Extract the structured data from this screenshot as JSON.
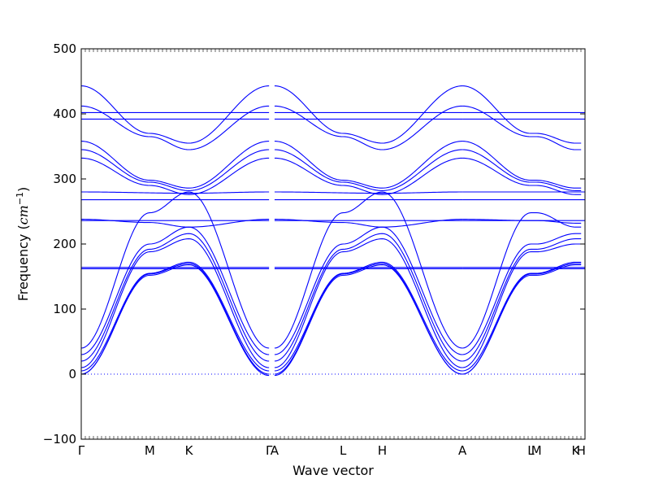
{
  "chart_data": {
    "type": "line",
    "xlabel": "Wave vector",
    "ylabel_prefix": "Frequency (",
    "ylabel_unit": "cm",
    "ylabel_exp": "−1",
    "ylabel_suffix": ")",
    "ylim": [
      -100,
      500
    ],
    "yticks": [
      -100,
      0,
      100,
      200,
      300,
      400,
      500
    ],
    "ytick_labels": [
      "−100",
      "0",
      "100",
      "200",
      "300",
      "400",
      "500"
    ],
    "xlim": [
      0,
      9.12
    ],
    "xticks": [
      {
        "label": "Γ",
        "x": 0
      },
      {
        "label": "M",
        "x": 1.24
      },
      {
        "label": "K",
        "x": 1.95
      },
      {
        "label": "Γ",
        "x": 3.4
      },
      {
        "label": "A",
        "x": 3.5
      },
      {
        "label": "L",
        "x": 4.74
      },
      {
        "label": "H",
        "x": 5.45
      },
      {
        "label": "A",
        "x": 6.9
      },
      {
        "label": "L",
        "x": 8.14
      },
      {
        "label": "M",
        "x": 8.24
      },
      {
        "label": "K",
        "x": 8.95
      },
      {
        "label": "H",
        "x": 9.05
      }
    ],
    "zero_line": 0,
    "line_color": "#0000ff",
    "zero_line_color": "#0000ff",
    "series": [
      {
        "x": [
          0,
          1.24,
          1.95,
          3.4
        ],
        "values": [
          443,
          370,
          355,
          443
        ]
      },
      {
        "x": [
          0,
          1.24,
          1.95,
          3.4
        ],
        "values": [
          412,
          365,
          345,
          412
        ]
      },
      {
        "x": [
          0,
          3.4
        ],
        "values": [
          402,
          402
        ]
      },
      {
        "x": [
          0,
          3.4
        ],
        "values": [
          392,
          392
        ]
      },
      {
        "x": [
          0,
          1.24,
          1.95,
          3.4
        ],
        "values": [
          358,
          298,
          286,
          358
        ]
      },
      {
        "x": [
          0,
          1.24,
          1.95,
          3.4
        ],
        "values": [
          345,
          295,
          282,
          345
        ]
      },
      {
        "x": [
          0,
          1.24,
          1.95,
          3.4
        ],
        "values": [
          332,
          290,
          276,
          332
        ]
      },
      {
        "x": [
          0,
          1.95,
          3.4
        ],
        "values": [
          280,
          278,
          280
        ]
      },
      {
        "x": [
          0,
          3.4
        ],
        "values": [
          268,
          268
        ]
      },
      {
        "x": [
          0,
          1.24,
          1.95,
          3.4
        ],
        "values": [
          238,
          233,
          226,
          238
        ]
      },
      {
        "x": [
          0,
          3.4
        ],
        "values": [
          236,
          236
        ]
      },
      {
        "x": [
          0,
          3.4
        ],
        "values": [
          164,
          164
        ]
      },
      {
        "x": [
          0,
          3.4
        ],
        "values": [
          162,
          162
        ]
      },
      {
        "x": [
          0,
          1.24,
          1.95,
          3.4
        ],
        "values": [
          40,
          248,
          280,
          40
        ]
      },
      {
        "x": [
          0,
          1.24,
          1.95,
          3.4
        ],
        "values": [
          30,
          200,
          226,
          30
        ]
      },
      {
        "x": [
          0,
          1.24,
          1.95,
          3.4
        ],
        "values": [
          20,
          192,
          216,
          20
        ]
      },
      {
        "x": [
          0,
          1.24,
          1.95,
          3.4
        ],
        "values": [
          10,
          188,
          208,
          10
        ]
      },
      {
        "x": [
          0,
          1.24,
          1.95,
          3.4
        ],
        "values": [
          5,
          155,
          172,
          5
        ]
      },
      {
        "x": [
          0,
          1.24,
          1.95,
          3.4
        ],
        "values": [
          0,
          154,
          170,
          0
        ]
      },
      {
        "x": [
          0,
          1.24,
          1.95,
          3.4
        ],
        "values": [
          0,
          152,
          168,
          -2
        ]
      },
      {
        "x": [
          3.5,
          4.74,
          5.45,
          6.9
        ],
        "values": [
          443,
          370,
          355,
          443
        ]
      },
      {
        "x": [
          3.5,
          4.74,
          5.45,
          6.9
        ],
        "values": [
          412,
          365,
          345,
          412
        ]
      },
      {
        "x": [
          3.5,
          6.9
        ],
        "values": [
          402,
          402
        ]
      },
      {
        "x": [
          3.5,
          6.9
        ],
        "values": [
          392,
          392
        ]
      },
      {
        "x": [
          3.5,
          4.74,
          5.45,
          6.9
        ],
        "values": [
          358,
          298,
          286,
          358
        ]
      },
      {
        "x": [
          3.5,
          4.74,
          5.45,
          6.9
        ],
        "values": [
          345,
          295,
          282,
          345
        ]
      },
      {
        "x": [
          3.5,
          4.74,
          5.45,
          6.9
        ],
        "values": [
          332,
          290,
          276,
          332
        ]
      },
      {
        "x": [
          3.5,
          5.45,
          6.9
        ],
        "values": [
          280,
          278,
          280
        ]
      },
      {
        "x": [
          3.5,
          6.9
        ],
        "values": [
          268,
          268
        ]
      },
      {
        "x": [
          3.5,
          4.74,
          5.45,
          6.9
        ],
        "values": [
          238,
          233,
          226,
          238
        ]
      },
      {
        "x": [
          3.5,
          6.9
        ],
        "values": [
          236,
          236
        ]
      },
      {
        "x": [
          3.5,
          6.9
        ],
        "values": [
          164,
          164
        ]
      },
      {
        "x": [
          3.5,
          6.9
        ],
        "values": [
          162,
          162
        ]
      },
      {
        "x": [
          3.5,
          4.74,
          5.45,
          6.9
        ],
        "values": [
          40,
          248,
          280,
          40
        ]
      },
      {
        "x": [
          3.5,
          4.74,
          5.45,
          6.9
        ],
        "values": [
          30,
          200,
          226,
          30
        ]
      },
      {
        "x": [
          3.5,
          4.74,
          5.45,
          6.9
        ],
        "values": [
          20,
          192,
          216,
          20
        ]
      },
      {
        "x": [
          3.5,
          4.74,
          5.45,
          6.9
        ],
        "values": [
          10,
          188,
          208,
          10
        ]
      },
      {
        "x": [
          3.5,
          4.74,
          5.45,
          6.9
        ],
        "values": [
          5,
          155,
          172,
          5
        ]
      },
      {
        "x": [
          3.5,
          4.74,
          5.45,
          6.9
        ],
        "values": [
          0,
          154,
          170,
          0
        ]
      },
      {
        "x": [
          3.5,
          4.74,
          5.45,
          6.9
        ],
        "values": [
          -2,
          152,
          168,
          0
        ]
      },
      {
        "x": [
          6.9,
          8.14,
          8.24,
          8.95,
          9.05
        ],
        "values": [
          443,
          370,
          370,
          355,
          355
        ]
      },
      {
        "x": [
          6.9,
          8.14,
          8.24,
          8.95,
          9.05
        ],
        "values": [
          412,
          365,
          365,
          345,
          345
        ]
      },
      {
        "x": [
          6.9,
          9.12
        ],
        "values": [
          402,
          402
        ]
      },
      {
        "x": [
          6.9,
          9.12
        ],
        "values": [
          392,
          392
        ]
      },
      {
        "x": [
          6.9,
          8.14,
          8.24,
          8.95,
          9.05
        ],
        "values": [
          358,
          298,
          298,
          286,
          286
        ]
      },
      {
        "x": [
          6.9,
          8.14,
          8.24,
          8.95,
          9.05
        ],
        "values": [
          345,
          295,
          295,
          282,
          282
        ]
      },
      {
        "x": [
          6.9,
          8.14,
          8.24,
          8.95,
          9.05
        ],
        "values": [
          332,
          290,
          290,
          276,
          276
        ]
      },
      {
        "x": [
          6.9,
          9.12
        ],
        "values": [
          280,
          280
        ]
      },
      {
        "x": [
          6.9,
          9.12
        ],
        "values": [
          268,
          268
        ]
      },
      {
        "x": [
          6.9,
          8.14,
          8.24,
          8.95,
          9.05
        ],
        "values": [
          238,
          236,
          236,
          232,
          232
        ]
      },
      {
        "x": [
          6.9,
          9.12
        ],
        "values": [
          236,
          236
        ]
      },
      {
        "x": [
          6.9,
          9.12
        ],
        "values": [
          164,
          164
        ]
      },
      {
        "x": [
          6.9,
          9.12
        ],
        "values": [
          162,
          162
        ]
      },
      {
        "x": [
          6.9,
          8.14,
          8.24,
          8.95,
          9.05
        ],
        "values": [
          40,
          248,
          248,
          226,
          226
        ]
      },
      {
        "x": [
          6.9,
          8.14,
          8.24,
          8.95,
          9.05
        ],
        "values": [
          30,
          200,
          200,
          216,
          216
        ]
      },
      {
        "x": [
          6.9,
          8.14,
          8.24,
          8.95,
          9.05
        ],
        "values": [
          20,
          192,
          192,
          208,
          208
        ]
      },
      {
        "x": [
          6.9,
          8.14,
          8.24,
          8.95,
          9.05
        ],
        "values": [
          10,
          188,
          188,
          200,
          200
        ]
      },
      {
        "x": [
          6.9,
          8.14,
          8.24,
          8.95,
          9.05
        ],
        "values": [
          5,
          155,
          155,
          172,
          172
        ]
      },
      {
        "x": [
          6.9,
          8.14,
          8.24,
          8.95,
          9.05
        ],
        "values": [
          0,
          154,
          154,
          170,
          170
        ]
      },
      {
        "x": [
          6.9,
          8.14,
          8.24,
          8.95,
          9.05
        ],
        "values": [
          0,
          152,
          152,
          168,
          168
        ]
      }
    ]
  }
}
